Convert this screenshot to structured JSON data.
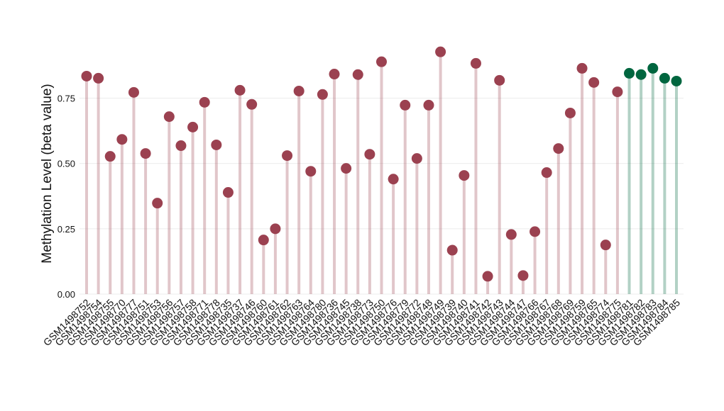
{
  "chart_data": {
    "type": "lollipop",
    "y_label": "Methylation Level (beta value)",
    "categories": [
      "GSM1498752",
      "GSM1498754",
      "GSM1498755",
      "GSM1498770",
      "GSM1498777",
      "GSM1498751",
      "GSM1498753",
      "GSM1498756",
      "GSM1498757",
      "GSM1498758",
      "GSM1498771",
      "GSM1498778",
      "GSM1498735",
      "GSM1498737",
      "GSM1498746",
      "GSM1498760",
      "GSM1498761",
      "GSM1498762",
      "GSM1498763",
      "GSM1498764",
      "GSM1498780",
      "GSM1498736",
      "GSM1498745",
      "GSM1498738",
      "GSM1498773",
      "GSM1498750",
      "GSM1498776",
      "GSM1498779",
      "GSM1498772",
      "GSM1498748",
      "GSM1498749",
      "GSM1498739",
      "GSM1498740",
      "GSM1498741",
      "GSM1498742",
      "GSM1498743",
      "GSM1498744",
      "GSM1498747",
      "GSM1498766",
      "GSM1498767",
      "GSM1498768",
      "GSM1498769",
      "GSM1498759",
      "GSM1498765",
      "GSM1498774",
      "GSM1498775",
      "GSM1498781",
      "GSM1498782",
      "GSM1498783",
      "GSM1498784",
      "GSM1498785"
    ],
    "values": [
      0.834,
      0.826,
      0.527,
      0.592,
      0.772,
      0.538,
      0.348,
      0.679,
      0.568,
      0.639,
      0.734,
      0.571,
      0.389,
      0.78,
      0.726,
      0.207,
      0.25,
      0.53,
      0.777,
      0.47,
      0.764,
      0.842,
      0.481,
      0.84,
      0.535,
      0.889,
      0.44,
      0.723,
      0.519,
      0.723,
      0.927,
      0.168,
      0.454,
      0.883,
      0.068,
      0.818,
      0.228,
      0.071,
      0.239,
      0.465,
      0.557,
      0.693,
      0.864,
      0.81,
      0.188,
      0.774,
      0.845,
      0.84,
      0.864,
      0.826,
      0.815
    ],
    "point_colors": [
      "#9b4150",
      "#9b4150",
      "#9b4150",
      "#9b4150",
      "#9b4150",
      "#9b4150",
      "#9b4150",
      "#9b4150",
      "#9b4150",
      "#9b4150",
      "#9b4150",
      "#9b4150",
      "#9b4150",
      "#9b4150",
      "#9b4150",
      "#9b4150",
      "#9b4150",
      "#9b4150",
      "#9b4150",
      "#9b4150",
      "#9b4150",
      "#9b4150",
      "#9b4150",
      "#9b4150",
      "#9b4150",
      "#9b4150",
      "#9b4150",
      "#9b4150",
      "#9b4150",
      "#9b4150",
      "#9b4150",
      "#9b4150",
      "#9b4150",
      "#9b4150",
      "#9b4150",
      "#9b4150",
      "#9b4150",
      "#9b4150",
      "#9b4150",
      "#9b4150",
      "#9b4150",
      "#9b4150",
      "#9b4150",
      "#9b4150",
      "#9b4150",
      "#9b4150",
      "#00663f",
      "#00663f",
      "#00663f",
      "#00663f",
      "#00663f"
    ],
    "ylim": [
      0,
      0.96
    ],
    "yticks": [
      {
        "value": 0,
        "label": "0.00"
      },
      {
        "value": 0.25,
        "label": "0.25"
      },
      {
        "value": 0.5,
        "label": "0.50"
      },
      {
        "value": 0.75,
        "label": "0.75"
      }
    ],
    "grid": true
  }
}
